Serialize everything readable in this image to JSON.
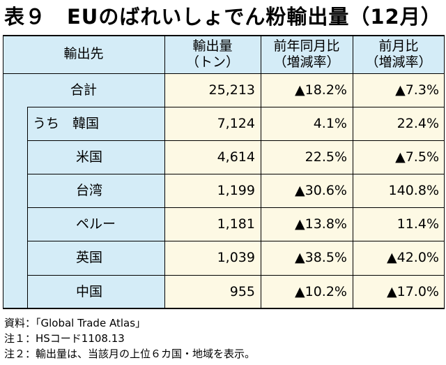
{
  "title": "表９　EUのばれいしょでん粉輸出量（12月）",
  "headers": {
    "destination": "輸出先",
    "volume_l1": "輸出量",
    "volume_l2": "（トン）",
    "yoy_l1": "前年同月比",
    "yoy_l2": "（増減率）",
    "mom_l1": "前月比",
    "mom_l2": "（増減率）"
  },
  "rows": [
    {
      "name": "合計",
      "volume": "25,213",
      "yoy": "▲18.2%",
      "mom": "▲7.3%"
    },
    {
      "name": "うち　韓国",
      "volume": "7,124",
      "yoy": "4.1%",
      "mom": "22.4%"
    },
    {
      "name": "米国",
      "volume": "4,614",
      "yoy": "22.5%",
      "mom": "▲7.5%"
    },
    {
      "name": "台湾",
      "volume": "1,199",
      "yoy": "▲30.6%",
      "mom": "140.8%"
    },
    {
      "name": "ペルー",
      "volume": "1,181",
      "yoy": "▲13.8%",
      "mom": "11.4%"
    },
    {
      "name": "英国",
      "volume": "1,039",
      "yoy": "▲38.5%",
      "mom": "▲42.0%"
    },
    {
      "name": "中国",
      "volume": "955",
      "yoy": "▲10.2%",
      "mom": "▲17.0%"
    }
  ],
  "notes": [
    "資料：「Global Trade Atlas」",
    "注１：HSコード1108.13",
    "注２：輸出量は、当該月の上位６カ国・地域を表示。"
  ],
  "colors": {
    "header_bg": "#d4ecf7",
    "value_bg": "#fdf9e4",
    "rule": "#000000"
  }
}
